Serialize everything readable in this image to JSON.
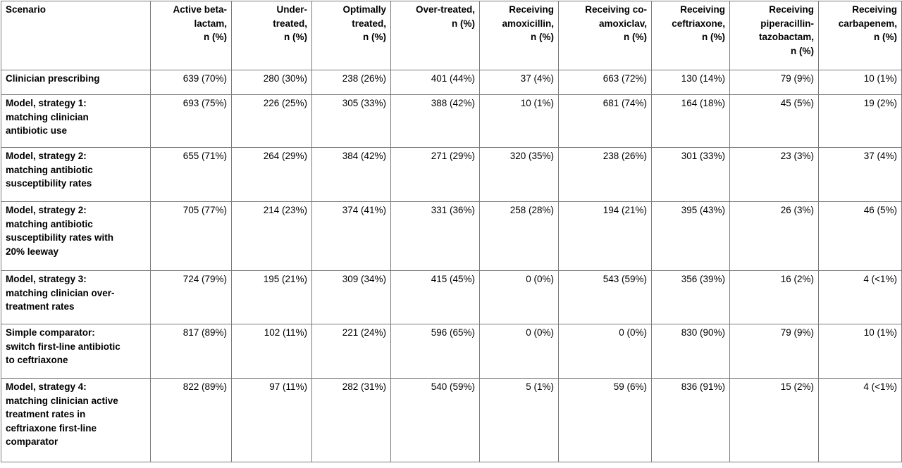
{
  "table": {
    "headers": [
      {
        "key": "scenario",
        "lines": [
          "Scenario"
        ]
      },
      {
        "key": "active",
        "lines": [
          "Active beta-",
          "lactam,",
          "n (%)"
        ]
      },
      {
        "key": "under",
        "lines": [
          "Under-",
          "treated,",
          "n (%)"
        ]
      },
      {
        "key": "optimal",
        "lines": [
          "Optimally",
          "treated,",
          "n (%)"
        ]
      },
      {
        "key": "over",
        "lines": [
          "Over-treated,",
          "n (%)"
        ]
      },
      {
        "key": "amox",
        "lines": [
          "Receiving",
          "amoxicillin,",
          "n (%)"
        ]
      },
      {
        "key": "coamox",
        "lines": [
          "Receiving co-",
          "amoxiclav,",
          "n (%)"
        ]
      },
      {
        "key": "ceft",
        "lines": [
          "Receiving",
          "ceftriaxone,",
          "n (%)"
        ]
      },
      {
        "key": "pip",
        "lines": [
          "Receiving",
          "piperacillin-",
          "tazobactam,",
          "n (%)"
        ]
      },
      {
        "key": "carb",
        "lines": [
          "Receiving",
          "carbapenem,",
          "n (%)"
        ]
      }
    ],
    "rows": [
      {
        "scenario": [
          "Clinician prescribing"
        ],
        "cells": [
          "639 (70%)",
          "280 (30%)",
          "238 (26%)",
          "401 (44%)",
          "37 (4%)",
          "663 (72%)",
          "130 (14%)",
          "79 (9%)",
          "10 (1%)"
        ]
      },
      {
        "scenario": [
          "Model, strategy 1:",
          "matching clinician",
          "antibiotic use"
        ],
        "cells": [
          "693 (75%)",
          "226 (25%)",
          "305 (33%)",
          "388 (42%)",
          "10 (1%)",
          "681 (74%)",
          "164 (18%)",
          "45 (5%)",
          "19 (2%)"
        ]
      },
      {
        "scenario": [
          "Model, strategy 2:",
          "matching antibiotic",
          "susceptibility rates"
        ],
        "cells": [
          "655 (71%)",
          "264 (29%)",
          "384 (42%)",
          "271 (29%)",
          "320 (35%)",
          "238 (26%)",
          "301 (33%)",
          "23 (3%)",
          "37 (4%)"
        ]
      },
      {
        "scenario": [
          "Model, strategy 2:",
          "matching antibiotic",
          "susceptibility rates with",
          "20% leeway"
        ],
        "cells": [
          "705 (77%)",
          "214 (23%)",
          "374 (41%)",
          "331 (36%)",
          "258 (28%)",
          "194 (21%)",
          "395 (43%)",
          "26 (3%)",
          "46 (5%)"
        ]
      },
      {
        "scenario": [
          "Model, strategy 3:",
          "matching clinician over-",
          "treatment rates"
        ],
        "cells": [
          "724 (79%)",
          "195 (21%)",
          "309 (34%)",
          "415 (45%)",
          "0 (0%)",
          "543 (59%)",
          "356 (39%)",
          "16 (2%)",
          "4 (<1%)"
        ]
      },
      {
        "scenario": [
          "Simple comparator:",
          "switch first-line antibiotic",
          "to ceftriaxone"
        ],
        "cells": [
          "817 (89%)",
          "102 (11%)",
          "221 (24%)",
          "596 (65%)",
          "0 (0%)",
          "0 (0%)",
          "830 (90%)",
          "79 (9%)",
          "10 (1%)"
        ]
      },
      {
        "scenario": [
          "Model, strategy 4:",
          "matching clinician active",
          "treatment rates in",
          "ceftriaxone first-line",
          "comparator"
        ],
        "cells": [
          "822 (89%)",
          "97 (11%)",
          "282 (31%)",
          "540 (59%)",
          "5 (1%)",
          "59 (6%)",
          "836 (91%)",
          "15 (2%)",
          "4 (<1%)"
        ]
      }
    ]
  }
}
